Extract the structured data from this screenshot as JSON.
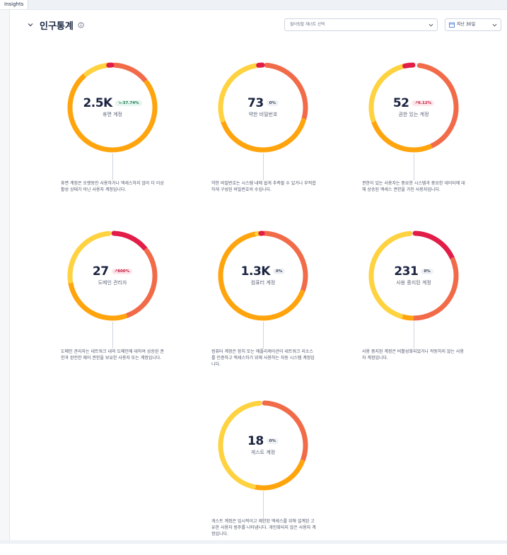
{
  "tab": {
    "label": "Insights"
  },
  "section": {
    "title": "인구통계"
  },
  "filter": {
    "placeholder": "필터링할 재녀트 선택"
  },
  "period": {
    "label": "지난 30일"
  },
  "colors": {
    "yellow": "#FFD23F",
    "amber": "#FFA40C",
    "orange": "#F26B49",
    "red": "#E11D48"
  },
  "cards": [
    {
      "value": "2.5K",
      "badge": "-37.74%",
      "trend": "down",
      "label": "휴면 계정",
      "description": "휴면 계정은 오랫동안 사용하거나 액세스하지 않아 더 이상 활성 상태가 아닌 사용자 계정입니다."
    },
    {
      "value": "73",
      "badge": "0%",
      "trend": "neutral",
      "label": "약한 비밀번호",
      "description": "약한 비밀번호는 시스템 내에 쉽게 추측할 수 있거나 부적합하게 구성된 비밀번호의 수입니다."
    },
    {
      "value": "52",
      "badge": "6.12%",
      "trend": "up",
      "label": "권한 있는 계정",
      "description": "권한이 있는 사용자는 중요한 시스템과 중요한 데이터에 대해 상승된 액세스 권한을 가진 사용자입니다."
    },
    {
      "value": "27",
      "badge": "800%",
      "trend": "up",
      "label": "도메인 관리자",
      "description": "도메인 관리자는 네트워크 내의 도메인에 대하여 상승된 권한과 완전한 제어 권한을 보유한 사용자 또는 계정입니다."
    },
    {
      "value": "1.3K",
      "badge": "0%",
      "trend": "neutral",
      "label": "컴퓨터 계정",
      "description": "컴퓨터 계정은 장치 또는 애플리케이션이 네트워크 리소스를 인증하고 액세스하기 위해 사용하는 자동 시스템 계정입니다."
    },
    {
      "value": "231",
      "badge": "0%",
      "trend": "neutral",
      "label": "사용 중지된 계정",
      "description": "사용 중지된 계정은 비활성화되었거나 작동하지 않는 사용자 계정입니다."
    },
    {
      "value": "18",
      "badge": "0%",
      "trend": "neutral",
      "label": "게스트 계정",
      "description": "게스트 계정은 임시적이고 제한된 액세스를 위해 설계된 고유한 사용자 범주를 나타냅니다. 개인화되지 않은 사용자 계정입니다."
    }
  ]
}
